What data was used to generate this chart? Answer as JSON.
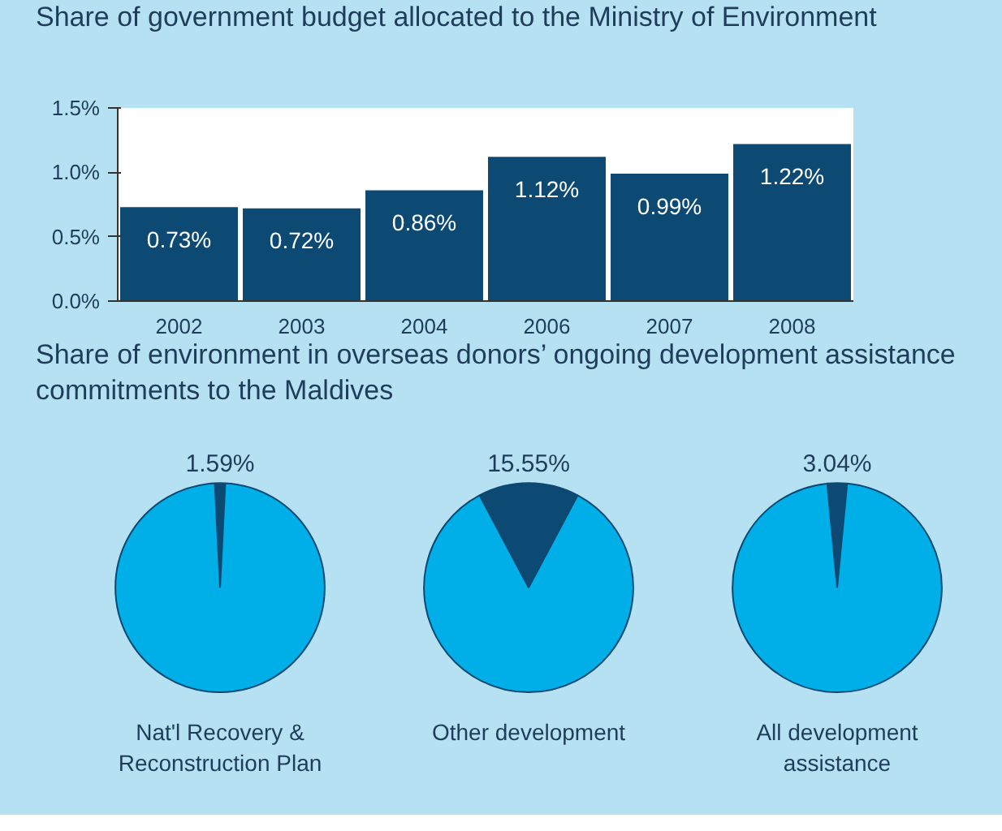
{
  "chart_data": [
    {
      "type": "bar",
      "title": "Share of  government budget allocated to the Ministry of Environment",
      "categories": [
        "2002",
        "2003",
        "2004",
        "2006",
        "2007",
        "2008"
      ],
      "values": [
        0.73,
        0.72,
        0.86,
        1.12,
        0.99,
        1.22
      ],
      "value_labels": [
        "0.73%",
        "0.72%",
        "0.86%",
        "1.12%",
        "0.99%",
        "1.22%"
      ],
      "color": "#0c4a74",
      "ylim": [
        0,
        1.5
      ],
      "yticks": [
        {
          "value": 0,
          "label": "0.0%"
        },
        {
          "value": 0.5,
          "label": "0.5%"
        },
        {
          "value": 1.0,
          "label": "1.0%"
        },
        {
          "value": 1.5,
          "label": "1.5%"
        }
      ],
      "grid": false
    },
    {
      "type": "pie",
      "title": "Nat'l Recovery & Reconstruction Plan",
      "annotations": [
        "Share of environment in overseas donors’ ongoing development assistance commitments to the Maldives"
      ],
      "categories": [
        null,
        null
      ],
      "values": [
        1.59,
        98.41
      ],
      "colors": [
        "#0c4a74",
        "#00aee8"
      ],
      "value_labels": [
        "1.59%",
        null
      ]
    },
    {
      "type": "pie",
      "title": "Other development",
      "categories": [
        null,
        null
      ],
      "values": [
        15.55,
        84.45
      ],
      "colors": [
        "#0c4a74",
        "#00aee8"
      ],
      "value_labels": [
        "15.55%",
        null
      ]
    },
    {
      "type": "pie",
      "title": "All development assistance",
      "categories": [
        null,
        null
      ],
      "values": [
        3.04,
        96.96
      ],
      "colors": [
        "#0c4a74",
        "#00aee8"
      ],
      "value_labels": [
        "3.04%",
        null
      ]
    }
  ]
}
